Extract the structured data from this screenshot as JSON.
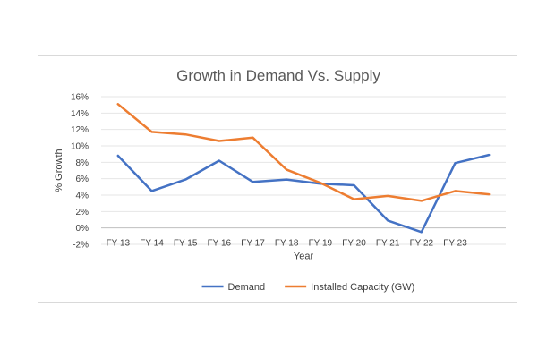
{
  "chart_data": {
    "type": "line",
    "title": "Growth in Demand Vs. Supply",
    "xlabel": "Year",
    "ylabel": "% Growth",
    "ylim": [
      -2,
      16
    ],
    "yticks": [
      "16%",
      "14%",
      "12%",
      "10%",
      "8%",
      "6%",
      "4%",
      "2%",
      "0%",
      "-2%"
    ],
    "categories": [
      "FY 13",
      "FY 14",
      "FY 15",
      "FY 16",
      "FY 17",
      "FY 18",
      "FY 19",
      "FY 20",
      "FY 21",
      "FY 22",
      "FY 23",
      ""
    ],
    "grid": true,
    "legend": "bottom",
    "series": [
      {
        "name": "Demand",
        "color": "#4472c4",
        "values": [
          8.8,
          4.5,
          5.9,
          8.2,
          5.6,
          5.9,
          5.4,
          5.2,
          0.9,
          -0.5,
          7.9,
          8.9
        ]
      },
      {
        "name": "Installed Capacity (GW)",
        "color": "#ed7d31",
        "values": [
          15.1,
          11.7,
          11.4,
          10.6,
          11.0,
          7.1,
          5.5,
          3.5,
          3.9,
          3.3,
          4.5,
          4.1
        ]
      }
    ]
  }
}
